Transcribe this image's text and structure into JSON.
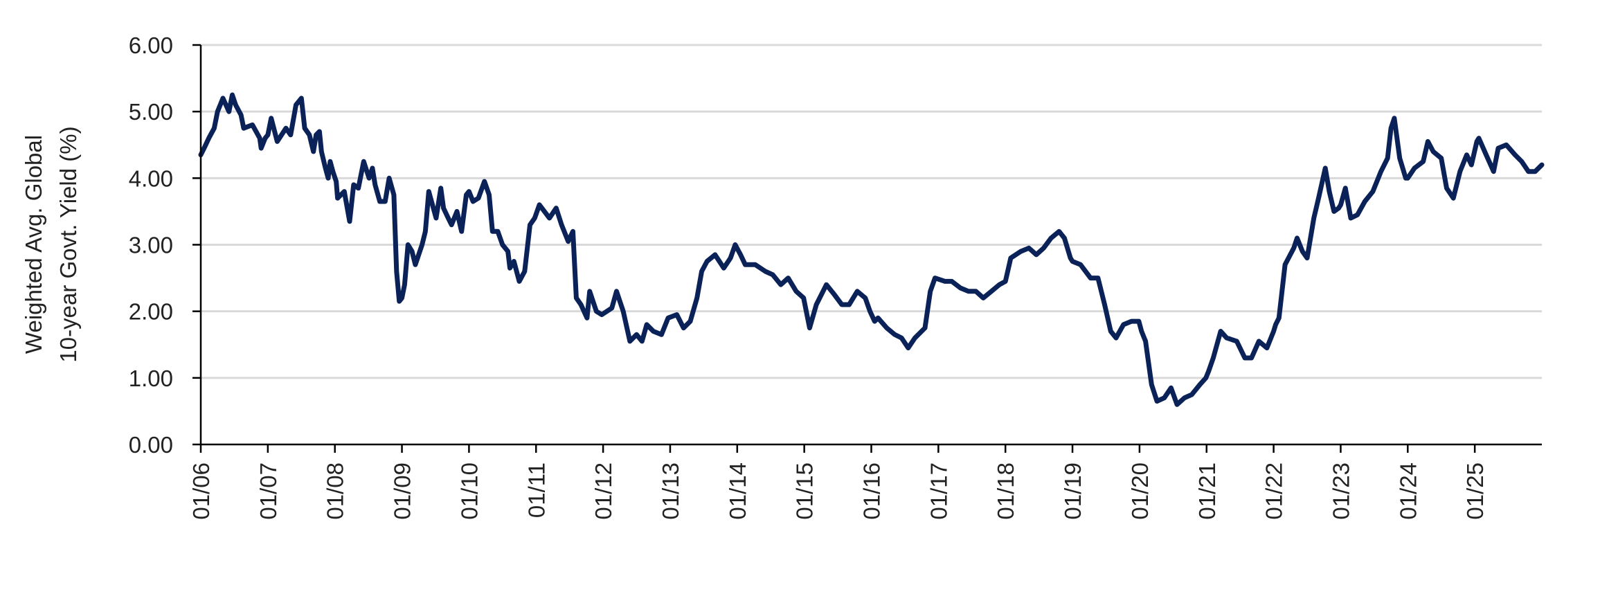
{
  "chart_data": {
    "type": "line",
    "title": "",
    "xlabel": "",
    "ylabel": "Weighted Avg. Global\n10-year Govt. Yield (%)",
    "ylabel_lines": [
      "Weighted Avg. Global",
      "10-year Govt. Yield (%)"
    ],
    "ylim": [
      0,
      6
    ],
    "yticks": [
      0,
      1,
      2,
      3,
      4,
      5,
      6
    ],
    "ytick_labels": [
      "0.00",
      "1.00",
      "2.00",
      "3.00",
      "4.00",
      "5.00",
      "6.00"
    ],
    "xlim": [
      2006.0,
      2026.0
    ],
    "xticks": [
      2006,
      2007,
      2008,
      2009,
      2010,
      2011,
      2012,
      2013,
      2014,
      2015,
      2016,
      2017,
      2018,
      2019,
      2020,
      2021,
      2022,
      2023,
      2024,
      2025
    ],
    "xtick_labels": [
      "01/06",
      "01/07",
      "01/08",
      "01/09",
      "01/10",
      "01/11",
      "01/12",
      "01/13",
      "01/14",
      "01/15",
      "01/16",
      "01/17",
      "01/18",
      "01/19",
      "01/20",
      "01/21",
      "01/22",
      "01/23",
      "01/24",
      "01/25"
    ],
    "grid": true,
    "legend": "none",
    "series": [
      {
        "name": "Weighted Avg. Global 10-year Govt. Yield",
        "color": "#0b2259",
        "points": [
          [
            2006.0,
            4.35
          ],
          [
            2006.05,
            4.45
          ],
          [
            2006.12,
            4.6
          ],
          [
            2006.2,
            4.75
          ],
          [
            2006.25,
            5.0
          ],
          [
            2006.33,
            5.2
          ],
          [
            2006.42,
            5.0
          ],
          [
            2006.47,
            5.25
          ],
          [
            2006.52,
            5.1
          ],
          [
            2006.6,
            4.95
          ],
          [
            2006.64,
            4.75
          ],
          [
            2006.77,
            4.8
          ],
          [
            2006.88,
            4.6
          ],
          [
            2006.9,
            4.45
          ],
          [
            2006.96,
            4.6
          ],
          [
            2007.0,
            4.65
          ],
          [
            2007.05,
            4.9
          ],
          [
            2007.14,
            4.55
          ],
          [
            2007.27,
            4.75
          ],
          [
            2007.34,
            4.65
          ],
          [
            2007.42,
            5.1
          ],
          [
            2007.5,
            5.2
          ],
          [
            2007.55,
            4.75
          ],
          [
            2007.62,
            4.65
          ],
          [
            2007.68,
            4.4
          ],
          [
            2007.72,
            4.65
          ],
          [
            2007.77,
            4.7
          ],
          [
            2007.8,
            4.4
          ],
          [
            2007.86,
            4.15
          ],
          [
            2007.9,
            4.0
          ],
          [
            2007.93,
            4.25
          ],
          [
            2007.97,
            4.1
          ],
          [
            2008.02,
            3.95
          ],
          [
            2008.04,
            3.7
          ],
          [
            2008.14,
            3.8
          ],
          [
            2008.22,
            3.35
          ],
          [
            2008.28,
            3.9
          ],
          [
            2008.35,
            3.85
          ],
          [
            2008.43,
            4.25
          ],
          [
            2008.51,
            4.0
          ],
          [
            2008.56,
            4.15
          ],
          [
            2008.6,
            3.9
          ],
          [
            2008.67,
            3.65
          ],
          [
            2008.75,
            3.65
          ],
          [
            2008.81,
            4.0
          ],
          [
            2008.88,
            3.75
          ],
          [
            2008.92,
            2.6
          ],
          [
            2008.96,
            2.15
          ],
          [
            2009.0,
            2.2
          ],
          [
            2009.04,
            2.4
          ],
          [
            2009.09,
            3.0
          ],
          [
            2009.15,
            2.9
          ],
          [
            2009.2,
            2.7
          ],
          [
            2009.3,
            3.0
          ],
          [
            2009.35,
            3.2
          ],
          [
            2009.4,
            3.8
          ],
          [
            2009.51,
            3.4
          ],
          [
            2009.58,
            3.85
          ],
          [
            2009.62,
            3.55
          ],
          [
            2009.69,
            3.4
          ],
          [
            2009.74,
            3.3
          ],
          [
            2009.82,
            3.5
          ],
          [
            2009.89,
            3.2
          ],
          [
            2009.96,
            3.75
          ],
          [
            2010.0,
            3.8
          ],
          [
            2010.06,
            3.65
          ],
          [
            2010.14,
            3.7
          ],
          [
            2010.23,
            3.95
          ],
          [
            2010.3,
            3.75
          ],
          [
            2010.35,
            3.2
          ],
          [
            2010.43,
            3.2
          ],
          [
            2010.5,
            3.0
          ],
          [
            2010.58,
            2.9
          ],
          [
            2010.61,
            2.65
          ],
          [
            2010.67,
            2.75
          ],
          [
            2010.75,
            2.45
          ],
          [
            2010.83,
            2.6
          ],
          [
            2010.91,
            3.3
          ],
          [
            2010.98,
            3.4
          ],
          [
            2011.05,
            3.6
          ],
          [
            2011.2,
            3.4
          ],
          [
            2011.3,
            3.55
          ],
          [
            2011.38,
            3.3
          ],
          [
            2011.48,
            3.05
          ],
          [
            2011.55,
            3.2
          ],
          [
            2011.6,
            2.2
          ],
          [
            2011.67,
            2.1
          ],
          [
            2011.76,
            1.9
          ],
          [
            2011.8,
            2.3
          ],
          [
            2011.9,
            2.0
          ],
          [
            2011.98,
            1.95
          ],
          [
            2012.13,
            2.05
          ],
          [
            2012.2,
            2.3
          ],
          [
            2012.3,
            2.0
          ],
          [
            2012.4,
            1.55
          ],
          [
            2012.5,
            1.65
          ],
          [
            2012.58,
            1.55
          ],
          [
            2012.65,
            1.8
          ],
          [
            2012.75,
            1.7
          ],
          [
            2012.87,
            1.65
          ],
          [
            2012.97,
            1.9
          ],
          [
            2013.1,
            1.95
          ],
          [
            2013.2,
            1.75
          ],
          [
            2013.3,
            1.85
          ],
          [
            2013.4,
            2.2
          ],
          [
            2013.47,
            2.6
          ],
          [
            2013.55,
            2.75
          ],
          [
            2013.67,
            2.85
          ],
          [
            2013.8,
            2.65
          ],
          [
            2013.9,
            2.8
          ],
          [
            2013.97,
            3.0
          ],
          [
            2014.05,
            2.85
          ],
          [
            2014.12,
            2.7
          ],
          [
            2014.27,
            2.7
          ],
          [
            2014.42,
            2.6
          ],
          [
            2014.53,
            2.55
          ],
          [
            2014.65,
            2.4
          ],
          [
            2014.76,
            2.5
          ],
          [
            2014.88,
            2.3
          ],
          [
            2014.99,
            2.2
          ],
          [
            2015.08,
            1.75
          ],
          [
            2015.18,
            2.1
          ],
          [
            2015.33,
            2.4
          ],
          [
            2015.45,
            2.25
          ],
          [
            2015.56,
            2.1
          ],
          [
            2015.67,
            2.1
          ],
          [
            2015.79,
            2.3
          ],
          [
            2015.91,
            2.2
          ],
          [
            2015.98,
            2.0
          ],
          [
            2016.05,
            1.85
          ],
          [
            2016.1,
            1.9
          ],
          [
            2016.23,
            1.75
          ],
          [
            2016.35,
            1.65
          ],
          [
            2016.45,
            1.6
          ],
          [
            2016.55,
            1.45
          ],
          [
            2016.65,
            1.6
          ],
          [
            2016.8,
            1.75
          ],
          [
            2016.88,
            2.3
          ],
          [
            2016.95,
            2.5
          ],
          [
            2017.1,
            2.45
          ],
          [
            2017.2,
            2.45
          ],
          [
            2017.33,
            2.35
          ],
          [
            2017.45,
            2.3
          ],
          [
            2017.56,
            2.3
          ],
          [
            2017.67,
            2.2
          ],
          [
            2017.79,
            2.3
          ],
          [
            2017.91,
            2.4
          ],
          [
            2018.0,
            2.45
          ],
          [
            2018.08,
            2.8
          ],
          [
            2018.23,
            2.9
          ],
          [
            2018.35,
            2.95
          ],
          [
            2018.46,
            2.85
          ],
          [
            2018.57,
            2.95
          ],
          [
            2018.68,
            3.1
          ],
          [
            2018.8,
            3.2
          ],
          [
            2018.88,
            3.1
          ],
          [
            2018.97,
            2.8
          ],
          [
            2019.0,
            2.75
          ],
          [
            2019.12,
            2.7
          ],
          [
            2019.27,
            2.5
          ],
          [
            2019.38,
            2.5
          ],
          [
            2019.48,
            2.1
          ],
          [
            2019.57,
            1.7
          ],
          [
            2019.65,
            1.6
          ],
          [
            2019.76,
            1.8
          ],
          [
            2019.88,
            1.85
          ],
          [
            2019.99,
            1.85
          ],
          [
            2020.03,
            1.7
          ],
          [
            2020.09,
            1.55
          ],
          [
            2020.18,
            0.9
          ],
          [
            2020.26,
            0.65
          ],
          [
            2020.37,
            0.7
          ],
          [
            2020.47,
            0.85
          ],
          [
            2020.56,
            0.6
          ],
          [
            2020.67,
            0.7
          ],
          [
            2020.78,
            0.75
          ],
          [
            2020.9,
            0.9
          ],
          [
            2020.99,
            1.0
          ],
          [
            2021.03,
            1.1
          ],
          [
            2021.1,
            1.3
          ],
          [
            2021.21,
            1.7
          ],
          [
            2021.3,
            1.6
          ],
          [
            2021.45,
            1.55
          ],
          [
            2021.57,
            1.3
          ],
          [
            2021.67,
            1.3
          ],
          [
            2021.78,
            1.55
          ],
          [
            2021.9,
            1.45
          ],
          [
            2022.0,
            1.7
          ],
          [
            2022.03,
            1.8
          ],
          [
            2022.08,
            1.9
          ],
          [
            2022.17,
            2.7
          ],
          [
            2022.3,
            2.95
          ],
          [
            2022.35,
            3.1
          ],
          [
            2022.43,
            2.9
          ],
          [
            2022.5,
            2.8
          ],
          [
            2022.6,
            3.4
          ],
          [
            2022.67,
            3.7
          ],
          [
            2022.77,
            4.15
          ],
          [
            2022.83,
            3.8
          ],
          [
            2022.9,
            3.5
          ],
          [
            2022.97,
            3.55
          ],
          [
            2023.0,
            3.6
          ],
          [
            2023.07,
            3.85
          ],
          [
            2023.15,
            3.4
          ],
          [
            2023.25,
            3.45
          ],
          [
            2023.36,
            3.65
          ],
          [
            2023.48,
            3.8
          ],
          [
            2023.6,
            4.1
          ],
          [
            2023.7,
            4.3
          ],
          [
            2023.75,
            4.75
          ],
          [
            2023.8,
            4.9
          ],
          [
            2023.88,
            4.3
          ],
          [
            2023.97,
            4.0
          ],
          [
            2024.0,
            4.0
          ],
          [
            2024.1,
            4.15
          ],
          [
            2024.23,
            4.25
          ],
          [
            2024.3,
            4.55
          ],
          [
            2024.38,
            4.4
          ],
          [
            2024.5,
            4.3
          ],
          [
            2024.58,
            3.85
          ],
          [
            2024.68,
            3.7
          ],
          [
            2024.78,
            4.1
          ],
          [
            2024.88,
            4.35
          ],
          [
            2024.95,
            4.2
          ],
          [
            2025.03,
            4.55
          ],
          [
            2025.06,
            4.6
          ],
          [
            2025.17,
            4.35
          ],
          [
            2025.28,
            4.1
          ],
          [
            2025.35,
            4.45
          ],
          [
            2025.47,
            4.5
          ],
          [
            2025.6,
            4.35
          ],
          [
            2025.7,
            4.25
          ],
          [
            2025.8,
            4.1
          ],
          [
            2025.9,
            4.1
          ],
          [
            2026.0,
            4.2
          ]
        ]
      }
    ]
  }
}
